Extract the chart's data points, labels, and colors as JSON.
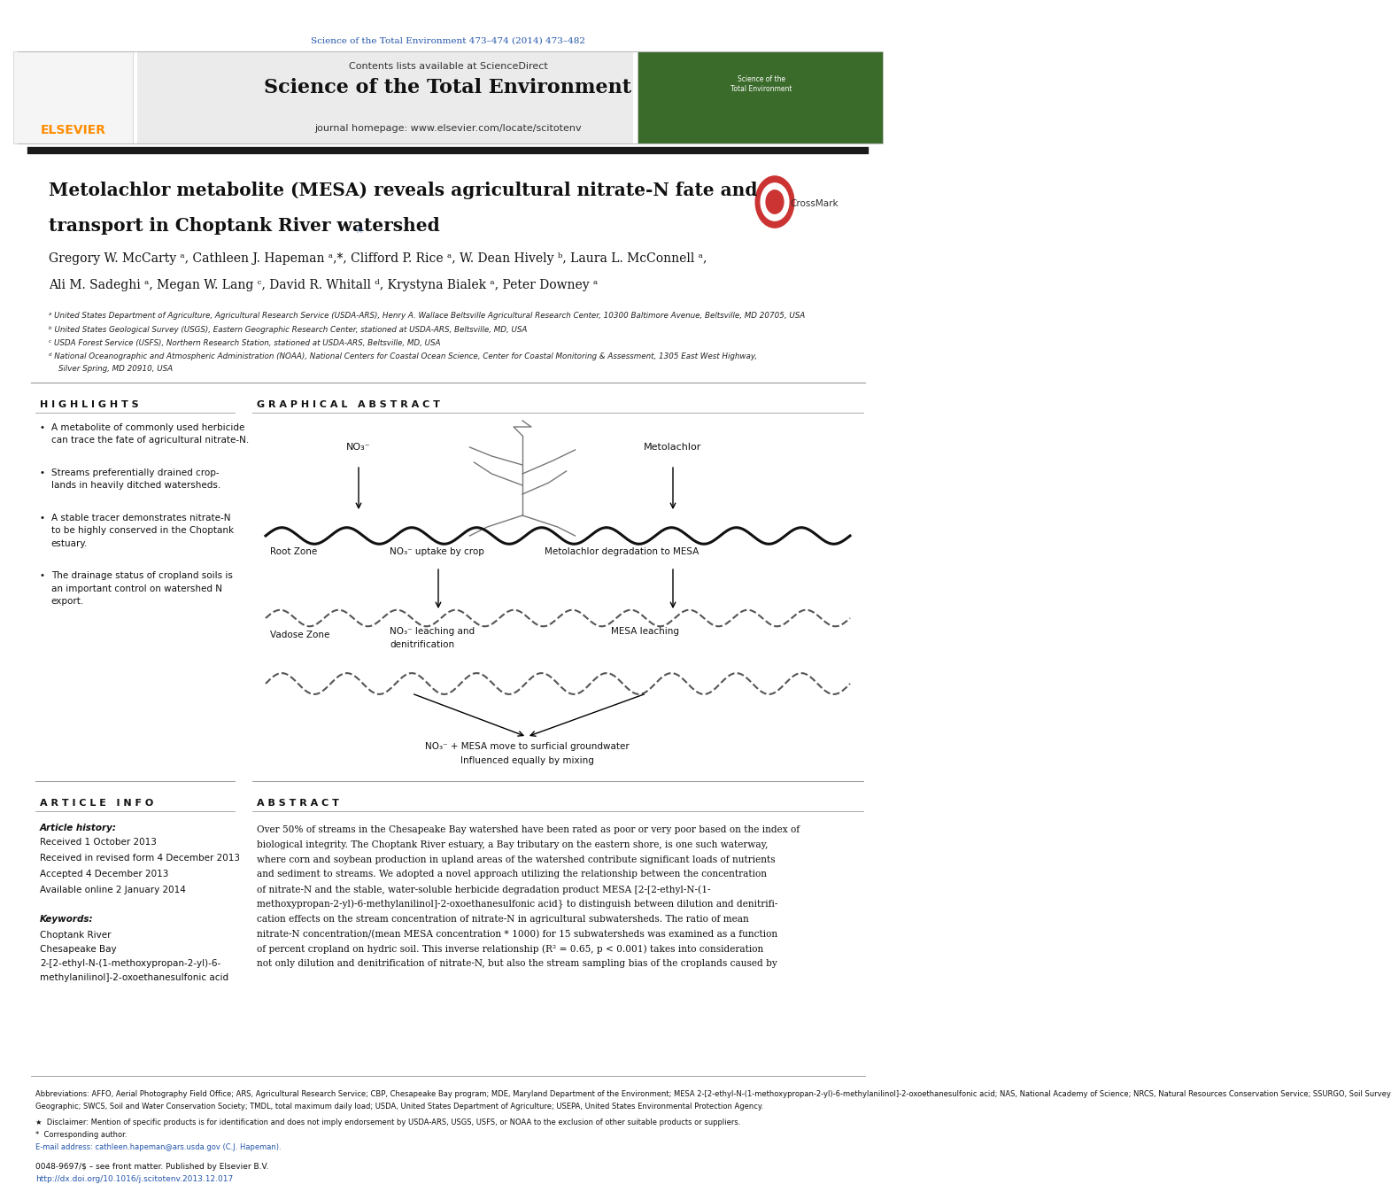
{
  "page_width": 9.92,
  "page_height": 13.23,
  "bg_color": "#ffffff",
  "journal_ref": "Science of the Total Environment 473–474 (2014) 473–482",
  "journal_ref_color": "#2255aa",
  "header_bg": "#e8e8e8",
  "header_text": "Contents lists available at ScienceDirect",
  "journal_title": "Science of the Total Environment",
  "journal_homepage": "journal homepage: www.elsevier.com/locate/scitotenv",
  "elsevier_color": "#ff8c00",
  "thick_bar_color": "#1a1a1a",
  "article_title_line1": "Metolachlor metabolite (MESA) reveals agricultural nitrate-N fate and",
  "article_title_line2": "transport in Choptank River watershed",
  "authors_line1": "Gregory W. McCarty ᵃ, Cathleen J. Hapeman ᵃ,*, Clifford P. Rice ᵃ, W. Dean Hively ᵇ, Laura L. McConnell ᵃ,",
  "authors_line2": "Ali M. Sadeghi ᵃ, Megan W. Lang ᶜ, David R. Whitall ᵈ, Krystyna Bialek ᵃ, Peter Downey ᵃ",
  "affil_a": "ᵃ United States Department of Agriculture, Agricultural Research Service (USDA-ARS), Henry A. Wallace Beltsville Agricultural Research Center, 10300 Baltimore Avenue, Beltsville, MD 20705, USA",
  "affil_b": "ᵇ United States Geological Survey (USGS), Eastern Geographic Research Center, stationed at USDA-ARS, Beltsville, MD, USA",
  "affil_c": "ᶜ USDA Forest Service (USFS), Northern Research Station, stationed at USDA-ARS, Beltsville, MD, USA",
  "affil_d": "ᵈ National Oceanographic and Atmospheric Administration (NOAA), National Centers for Coastal Ocean Science, Center for Coastal Monitoring & Assessment, 1305 East West Highway,",
  "affil_d2": "    Silver Spring, MD 20910, USA",
  "highlights_title": "H I G H L I G H T S",
  "highlights": [
    "A metabolite of commonly used herbicide can trace the fate of agricultural nitrate-N.",
    "Streams preferentially drained croplands in heavily ditched watersheds.",
    "A stable tracer demonstrates nitrate-N to be highly conserved in the Choptank estuary.",
    "The drainage status of cropland soils is an important control on watershed N export."
  ],
  "graphical_abstract_title": "G R A P H I C A L   A B S T R A C T",
  "article_info_title": "A R T I C L E   I N F O",
  "article_history_title": "Article history:",
  "received": "Received 1 October 2013",
  "revised": "Received in revised form 4 December 2013",
  "accepted": "Accepted 4 December 2013",
  "online": "Available online 2 January 2014",
  "keywords_title": "Keywords:",
  "keywords": [
    "Choptank River",
    "Chesapeake Bay",
    "2-[2-ethyl-N-(1-methoxypropan-2-yl)-6-",
    "methylanilinol]-2-oxoethanesulfonic acid"
  ],
  "abstract_title": "A B S T R A C T",
  "abstract_text": "Over 50% of streams in the Chesapeake Bay watershed have been rated as poor or very poor based on the index of biological integrity. The Choptank River estuary, a Bay tributary on the eastern shore, is one such waterway, where corn and soybean production in upland areas of the watershed contribute significant loads of nutrients and sediment to streams. We adopted a novel approach utilizing the relationship between the concentration of nitrate-N and the stable, water-soluble herbicide degradation product MESA [2-[2-ethyl-N-(1-methoxypropan-2-yl)-6-methylanilinol]-2-oxoethanesulfonic acid} to distinguish between dilution and denitrification effects on the stream concentration of nitrate-N in agricultural subwatersheds. The ratio of mean nitrate-N concentration/(mean MESA concentration * 1000) for 15 subwatersheds was examined as a function of percent cropland on hydric soil. This inverse relationship (R² = 0.65, p < 0.001) takes into consideration not only dilution and denitrification of nitrate-N, but also the stream sampling bias of the croplands caused by",
  "abbrev_text": "Abbreviations: AFFO, Aerial Photography Field Office; ARS, Agricultural Research Service; CBP, Chesapeake Bay program; MDE, Maryland Department of the Environment; MESA 2-[2-ethyl-N-(1-methoxypropan-2-yl)-6-methylanilinol]-2-oxoethanesulfonic acid; NAS, National Academy of Science; NRCS, Natural Resources Conservation Service; SSURGO, Soil Survey Geographic; SWCS, Soil and Water Conservation Society; TMDL, total maximum daily load; USDA, United States Department of Agriculture; USEPA, United States Environmental Protection Agency.",
  "abbrev_text2": "Protection Agency.",
  "disclaimer_text": "★  Disclaimer: Mention of specific products is for identification and does not imply endorsement by USDA-ARS, USGS, USFS, or NOAA to the exclusion of other suitable products or suppliers.",
  "corresponding_text": "*  Corresponding author.",
  "email_text": "E-mail address: cathleen.hapeman@ars.usda.gov (C.J. Hapeman).",
  "issn_text": "0048-9697/$ – see front matter. Published by Elsevier B.V.",
  "doi_text": "http://dx.doi.org/10.1016/j.scitotenv.2013.12.017",
  "link_color": "#2255aa",
  "separator_color": "#999999"
}
